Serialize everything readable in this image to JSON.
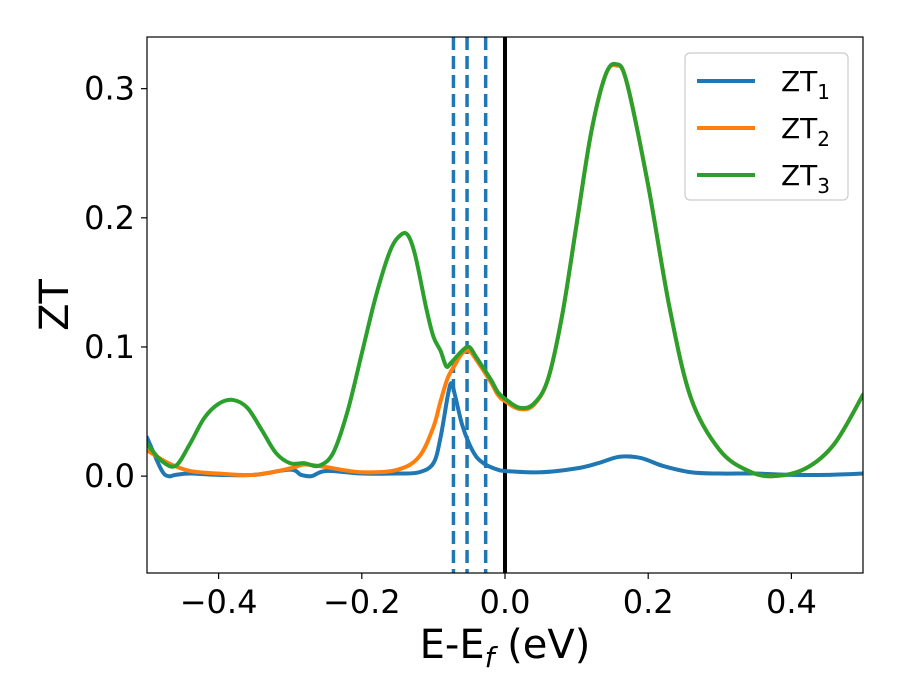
{
  "chart_data": {
    "type": "line",
    "xlabel": "E-E",
    "xlabel_sub": "f",
    "xlabel_unit": " (eV)",
    "ylabel": "ZT",
    "xlim": [
      -0.5,
      0.5
    ],
    "ylim": [
      -0.075,
      0.34
    ],
    "x_ticks": [
      -0.4,
      -0.2,
      0.0,
      0.2,
      0.4
    ],
    "x_tick_labels": [
      "−0.4",
      "−0.2",
      "0.0",
      "0.2",
      "0.4"
    ],
    "y_ticks": [
      0.0,
      0.1,
      0.2,
      0.3
    ],
    "y_tick_labels": [
      "0.0",
      "0.1",
      "0.2",
      "0.3"
    ],
    "grid": false,
    "legend_position": "top-right",
    "vertical_lines": [
      {
        "x": -0.072,
        "style": "dashed",
        "color": "#1f77b4"
      },
      {
        "x": -0.053,
        "style": "dashed",
        "color": "#1f77b4"
      },
      {
        "x": -0.027,
        "style": "dashed",
        "color": "#1f77b4"
      },
      {
        "x": 0.0,
        "style": "solid",
        "color": "#000000"
      }
    ],
    "series": [
      {
        "name": "ZT",
        "name_sub": "1",
        "color": "#1f77b4",
        "x": [
          -0.5,
          -0.48,
          -0.47,
          -0.46,
          -0.44,
          -0.4,
          -0.35,
          -0.3,
          -0.285,
          -0.27,
          -0.25,
          -0.2,
          -0.15,
          -0.12,
          -0.1,
          -0.09,
          -0.08,
          -0.075,
          -0.07,
          -0.06,
          -0.05,
          -0.04,
          -0.03,
          -0.02,
          -0.01,
          0.0,
          0.05,
          0.1,
          0.13,
          0.16,
          0.19,
          0.22,
          0.26,
          0.3,
          0.35,
          0.4,
          0.45,
          0.5
        ],
        "y": [
          0.03,
          0.005,
          0.0,
          0.001,
          0.002,
          0.001,
          0.001,
          0.005,
          0.001,
          0.0,
          0.004,
          0.002,
          0.002,
          0.003,
          0.01,
          0.03,
          0.062,
          0.072,
          0.063,
          0.04,
          0.025,
          0.015,
          0.01,
          0.007,
          0.005,
          0.004,
          0.003,
          0.006,
          0.01,
          0.015,
          0.014,
          0.008,
          0.003,
          0.002,
          0.002,
          0.001,
          0.001,
          0.002
        ]
      },
      {
        "name": "ZT",
        "name_sub": "2",
        "color": "#ff7f0e",
        "x": [
          -0.5,
          -0.47,
          -0.44,
          -0.4,
          -0.35,
          -0.3,
          -0.28,
          -0.25,
          -0.2,
          -0.15,
          -0.12,
          -0.1,
          -0.09,
          -0.08,
          -0.07,
          -0.06,
          -0.05,
          -0.04,
          -0.02,
          -0.01,
          0.0,
          0.02,
          0.04,
          0.06,
          0.08,
          0.1,
          0.12,
          0.14,
          0.155,
          0.17,
          0.2,
          0.23,
          0.26,
          0.3,
          0.34,
          0.375,
          0.42,
          0.46,
          0.5
        ],
        "y": [
          0.02,
          0.01,
          0.004,
          0.002,
          0.001,
          0.006,
          0.009,
          0.007,
          0.003,
          0.005,
          0.015,
          0.038,
          0.058,
          0.076,
          0.086,
          0.095,
          0.097,
          0.09,
          0.073,
          0.063,
          0.058,
          0.052,
          0.055,
          0.075,
          0.125,
          0.195,
          0.265,
          0.31,
          0.318,
          0.305,
          0.225,
          0.13,
          0.06,
          0.02,
          0.004,
          0.0,
          0.006,
          0.025,
          0.063
        ]
      },
      {
        "name": "ZT",
        "name_sub": "3",
        "color": "#2ca02c",
        "x": [
          -0.5,
          -0.48,
          -0.46,
          -0.44,
          -0.42,
          -0.4,
          -0.38,
          -0.36,
          -0.34,
          -0.32,
          -0.3,
          -0.28,
          -0.26,
          -0.24,
          -0.22,
          -0.2,
          -0.18,
          -0.16,
          -0.145,
          -0.135,
          -0.125,
          -0.11,
          -0.1,
          -0.09,
          -0.082,
          -0.075,
          -0.06,
          -0.05,
          -0.04,
          -0.02,
          -0.01,
          0.0,
          0.02,
          0.04,
          0.06,
          0.08,
          0.1,
          0.12,
          0.14,
          0.155,
          0.17,
          0.2,
          0.23,
          0.26,
          0.3,
          0.34,
          0.375,
          0.42,
          0.46,
          0.5
        ],
        "y": [
          0.025,
          0.012,
          0.008,
          0.025,
          0.045,
          0.056,
          0.059,
          0.053,
          0.036,
          0.018,
          0.01,
          0.01,
          0.008,
          0.018,
          0.05,
          0.095,
          0.14,
          0.175,
          0.187,
          0.186,
          0.17,
          0.13,
          0.108,
          0.097,
          0.085,
          0.088,
          0.097,
          0.1,
          0.092,
          0.075,
          0.065,
          0.06,
          0.053,
          0.056,
          0.075,
          0.125,
          0.195,
          0.265,
          0.31,
          0.319,
          0.305,
          0.225,
          0.13,
          0.06,
          0.02,
          0.004,
          0.0,
          0.006,
          0.025,
          0.063
        ]
      }
    ]
  }
}
